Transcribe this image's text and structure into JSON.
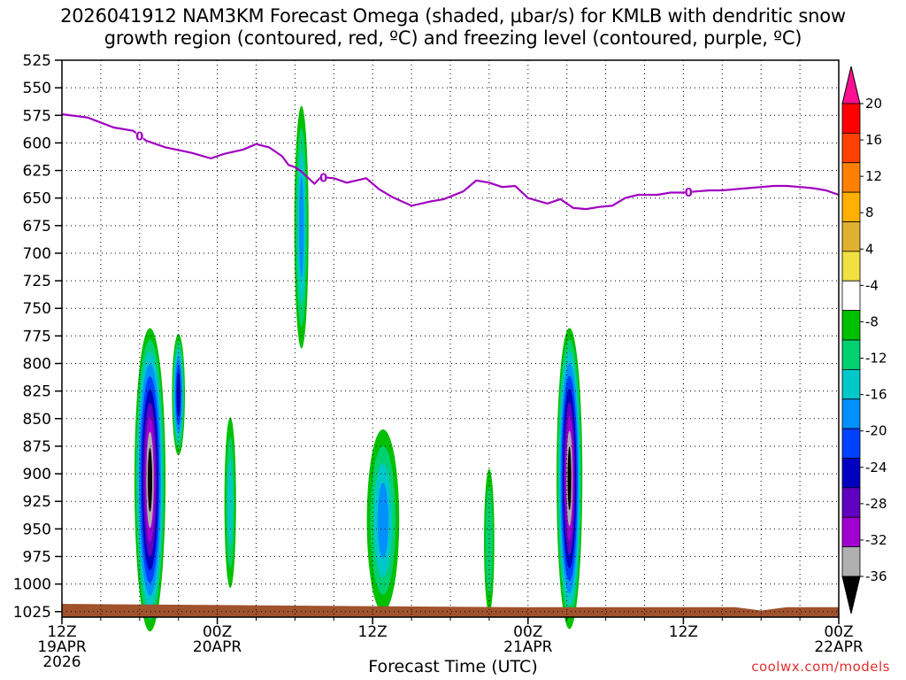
{
  "chart_data": {
    "type": "heatmap",
    "title_line1": "2026041912 NAM3KM Forecast Omega (shaded, μbar/s) for KMLB with dendritic snow",
    "title_line2": "growth region (contoured, red, ºC) and freezing level (contoured, purple, ºC)",
    "xlabel": "Forecast Time (UTC)",
    "watermark": "coolwx.com/models",
    "y_ticks": [
      525,
      550,
      575,
      600,
      625,
      650,
      675,
      700,
      725,
      750,
      775,
      800,
      825,
      850,
      875,
      900,
      925,
      950,
      975,
      1000,
      1025
    ],
    "y_range": [
      525,
      1030
    ],
    "x_range": [
      0,
      60
    ],
    "x_ticks": [
      {
        "hour": 0,
        "line1": "12Z",
        "line2": "19APR",
        "line3": "2026"
      },
      {
        "hour": 12,
        "line1": "00Z",
        "line2": "20APR",
        "line3": ""
      },
      {
        "hour": 24,
        "line1": "12Z",
        "line2": "",
        "line3": ""
      },
      {
        "hour": 36,
        "line1": "00Z",
        "line2": "21APR",
        "line3": ""
      },
      {
        "hour": 48,
        "line1": "12Z",
        "line2": "",
        "line3": ""
      },
      {
        "hour": 60,
        "line1": "00Z",
        "line2": "22APR",
        "line3": ""
      }
    ],
    "colorbar_labels": [
      20,
      16,
      12,
      8,
      4,
      -4,
      -8,
      -12,
      -16,
      -20,
      -24,
      -28,
      -32,
      -36
    ],
    "colorbar_colors": [
      "#ff0000",
      "#ff4000",
      "#ff8000",
      "#ffb000",
      "#e0b030",
      "#f0e040",
      "#ffffff",
      "#00c000",
      "#00d070",
      "#00c8c8",
      "#0090ff",
      "#0040ff",
      "#0000c0",
      "#6000c0",
      "#a000d0",
      "#b0b0b0",
      "#000000"
    ],
    "colorbar_top_color": "#ff1090",
    "freezing_level": {
      "name": "0",
      "color": "#a000c0",
      "hours": [
        0,
        2,
        4,
        5.5,
        6.5,
        8,
        10,
        11.5,
        12.5,
        14,
        15,
        16,
        17,
        17.5,
        18,
        18.5,
        19.5,
        20,
        21,
        22,
        23.5,
        24.5,
        25.5,
        27,
        28.5,
        29.5,
        31,
        32,
        33,
        34,
        35,
        36,
        37.5,
        38.5,
        39.5,
        40.5,
        41.5,
        42.5,
        43.5,
        44.5,
        46,
        47,
        48,
        49,
        50,
        51,
        52,
        53,
        54,
        55,
        56,
        57,
        58,
        59,
        60
      ],
      "pressure": [
        574,
        577,
        586,
        589,
        598,
        604,
        609,
        614,
        610,
        606,
        601,
        604,
        612,
        620,
        622,
        626,
        637,
        631,
        632,
        636,
        632,
        642,
        649,
        657,
        653,
        651,
        644,
        634,
        636,
        640,
        639,
        650,
        655,
        651,
        659,
        660,
        658,
        657,
        650,
        647,
        647,
        645,
        645,
        644,
        643,
        643,
        642,
        641,
        640,
        639,
        639,
        640,
        641,
        643,
        647
      ],
      "labels_at_hours": [
        6,
        20.2,
        48.4
      ]
    },
    "omega_features": [
      {
        "hour": 6.8,
        "p_top": 735,
        "p_bot": 1010,
        "width_h": 2.4,
        "min": -38
      },
      {
        "hour": 9.0,
        "p_top": 760,
        "p_bot": 870,
        "width_h": 1.0,
        "min": -24
      },
      {
        "hour": 39.2,
        "p_top": 735,
        "p_bot": 1008,
        "width_h": 2.0,
        "min": -38
      },
      {
        "hour": 24.8,
        "p_top": 840,
        "p_bot": 1005,
        "width_h": 2.5,
        "min": -14
      },
      {
        "hour": 33.0,
        "p_top": 880,
        "p_bot": 1010,
        "width_h": 0.8,
        "min": -9
      },
      {
        "hour": 18.5,
        "p_top": 540,
        "p_bot": 760,
        "width_h": 1.1,
        "min": -14
      },
      {
        "hour": 13.0,
        "p_top": 830,
        "p_bot": 985,
        "width_h": 0.9,
        "min": -10
      }
    ]
  }
}
